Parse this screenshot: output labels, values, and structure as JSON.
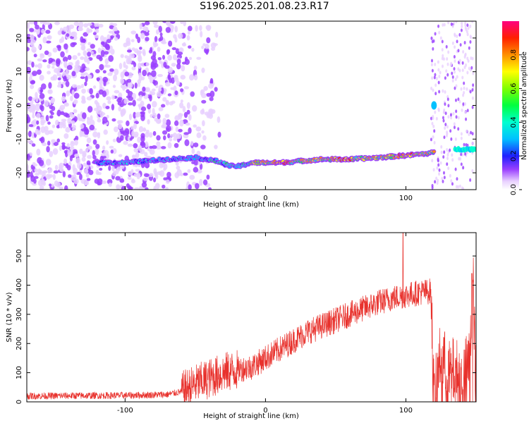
{
  "title": "S196.2025.201.08.23.R17",
  "chart_data": [
    {
      "type": "heatmap",
      "xlabel": "Height of straight line (km)",
      "ylabel": "Frequency (Hz)",
      "xlim": [
        -170,
        150
      ],
      "ylim": [
        -25,
        25
      ],
      "xticks": [
        -100,
        0,
        100
      ],
      "yticks": [
        20,
        10,
        0,
        -10,
        -20
      ],
      "colorbar": {
        "label": "Normalized spectral amplitude",
        "range": [
          0,
          1
        ],
        "ticks": [
          "0.0",
          "0.2",
          "0.4",
          "0.6",
          "0.8"
        ]
      },
      "ridge": {
        "x": [
          -100,
          -70,
          -50,
          -35,
          -25,
          -18,
          -10,
          0,
          10,
          25,
          40,
          60,
          80,
          95,
          110,
          120
        ],
        "freq": [
          -17,
          -16,
          -15.5,
          -16.5,
          -18,
          -18,
          -17,
          -17,
          -17,
          -16.5,
          -16,
          -16,
          -15.5,
          -15,
          -14.5,
          -14
        ]
      },
      "spike": {
        "x": 120,
        "freq": 0
      },
      "tail": {
        "x": [
          135,
          150
        ],
        "freq": [
          -13,
          -13
        ]
      },
      "noise_region": {
        "x": [
          -170,
          -30
        ],
        "freq": [
          -25,
          25
        ]
      }
    },
    {
      "type": "line",
      "xlabel": "Height of straight line (km)",
      "ylabel": "SNR (10 * v/v)",
      "xlim": [
        -170,
        150
      ],
      "ylim": [
        0,
        580
      ],
      "xticks": [
        -100,
        0,
        100
      ],
      "yticks": [
        0,
        100,
        200,
        300,
        400,
        500
      ],
      "color": "#e8312c",
      "trend": {
        "x": [
          -170,
          -100,
          -70,
          -60,
          -50,
          -40,
          -30,
          -20,
          -10,
          0,
          10,
          20,
          30,
          40,
          50,
          60,
          70,
          80,
          90,
          100,
          110,
          118,
          120,
          125,
          130,
          135,
          140,
          145,
          148,
          150
        ],
        "y": [
          20,
          22,
          25,
          35,
          60,
          80,
          100,
          110,
          120,
          150,
          180,
          210,
          240,
          260,
          280,
          300,
          320,
          340,
          355,
          365,
          375,
          380,
          0,
          170,
          90,
          110,
          70,
          140,
          400,
          20
        ]
      },
      "spikes": [
        {
          "x": 98,
          "y": 580
        },
        {
          "x": 147,
          "y": 440
        }
      ]
    }
  ]
}
